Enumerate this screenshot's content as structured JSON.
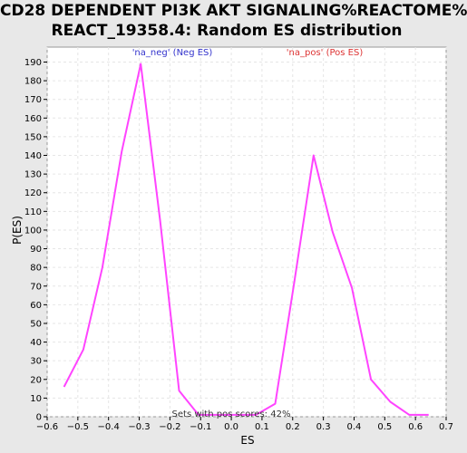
{
  "title_line1": "CD28 DEPENDENT PI3K AKT SIGNALING%REACTOME%",
  "title_line2": "REACT_19358.4: Random ES distribution",
  "chart_data": {
    "type": "line",
    "xlabel": "ES",
    "ylabel": "P(ES)",
    "xlim": [
      -0.6,
      0.7
    ],
    "ylim": [
      0,
      198
    ],
    "x_ticks": [
      -0.6,
      -0.5,
      -0.4,
      -0.3,
      -0.2,
      -0.1,
      0.0,
      0.1,
      0.2,
      0.3,
      0.4,
      0.5,
      0.6,
      0.7
    ],
    "x_tick_labels": [
      "−0.6",
      "−0.5",
      "−0.4",
      "−0.3",
      "−0.2",
      "−0.1",
      "0.0",
      "0.1",
      "0.2",
      "0.3",
      "0.4",
      "0.5",
      "0.6",
      "0.7"
    ],
    "y_ticks": [
      0,
      10,
      20,
      30,
      40,
      50,
      60,
      70,
      80,
      90,
      100,
      110,
      120,
      130,
      140,
      150,
      160,
      170,
      180,
      190
    ],
    "grid": true,
    "series": [
      {
        "color": "#ff44ff",
        "x": [
          -0.545,
          -0.482,
          -0.42,
          -0.357,
          -0.295,
          -0.232,
          -0.17,
          -0.107,
          -0.045,
          0.017,
          0.08,
          0.143,
          0.205,
          0.268,
          0.33,
          0.393,
          0.455,
          0.518,
          0.58,
          0.643
        ],
        "y": [
          16,
          36,
          80,
          142,
          189,
          105,
          14,
          1,
          1,
          1,
          1,
          7,
          72,
          140,
          99,
          69,
          20,
          8,
          1,
          1
        ]
      }
    ],
    "legend_neg": "'na_neg' (Neg ES)",
    "legend_pos": "'na_pos' (Pos ES)",
    "legend_neg_color": "#3333cc",
    "legend_pos_color": "#dd3333",
    "annotation": "Sets with pos scores: 42%"
  }
}
